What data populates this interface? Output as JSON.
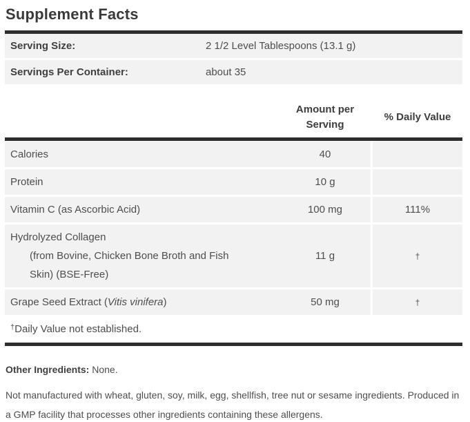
{
  "title": "Supplement Facts",
  "serving": {
    "rows": [
      {
        "label": "Serving Size:",
        "value": "2 1/2 Level Tablespoons (13.1 g)"
      },
      {
        "label": "Servings Per Container:",
        "value": "about 35"
      }
    ]
  },
  "table": {
    "header": {
      "amount_line1": "Amount per",
      "amount_line2": "Serving",
      "daily_value": "% Daily Value"
    },
    "rows": [
      {
        "name": "Calories",
        "amount": "40",
        "dv": ""
      },
      {
        "name": "Protein",
        "amount": "10 g",
        "dv": ""
      },
      {
        "name": "Vitamin C (as Ascorbic Acid)",
        "amount": "100 mg",
        "dv": "111%"
      },
      {
        "name": "Hydrolyzed Collagen",
        "name_sub_line1": "(from Bovine, Chicken Bone Broth and Fish",
        "name_sub_line2": "Skin) (BSE-Free)",
        "amount": "11 g",
        "dv": "†"
      },
      {
        "name_prefix": "Grape Seed Extract (",
        "name_italic": "Vitis vinifera",
        "name_suffix": ")",
        "amount": "50 mg",
        "dv": "†"
      }
    ]
  },
  "footnote": {
    "dagger": "†",
    "text": "Daily Value not established."
  },
  "other_ingredients": {
    "label": "Other Ingredients:",
    "value": "None."
  },
  "allergen_note": "Not manufactured with wheat, gluten, soy, milk, egg, shellfish, tree nut or sesame ingredients. Produced in a GMP facility that processes other ingredients containing these allergens.",
  "colors": {
    "bar": "#2d2d2d",
    "row_background": "#f2f2f3",
    "text": "#4d4d4d"
  }
}
